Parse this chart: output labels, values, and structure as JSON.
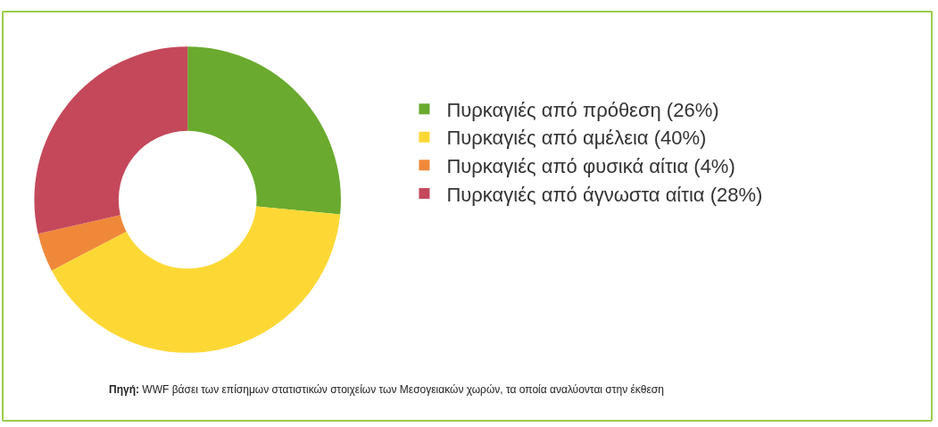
{
  "chart_data": {
    "type": "donut",
    "categories": [
      "Πυρκαγιές από πρόθεση (26%)",
      "Πυρκαγιές από αμέλεια (40%)",
      "Πυρκαγιές από φυσικά αίτια (4%)",
      "Πυρκαγιές από άγνωστα αίτια (28%)"
    ],
    "values": [
      26,
      40,
      4,
      28
    ],
    "colors": [
      "#6aaa2e",
      "#fdd835",
      "#f0883a",
      "#c4485a"
    ],
    "legend": "right",
    "annotations": [
      "Πηγή: WWF βάσει των επίσημων στατιστικών στοιχείων των Μεσογειακών χωρών, τα οποία αναλύονται στην έκθεση"
    ]
  }
}
